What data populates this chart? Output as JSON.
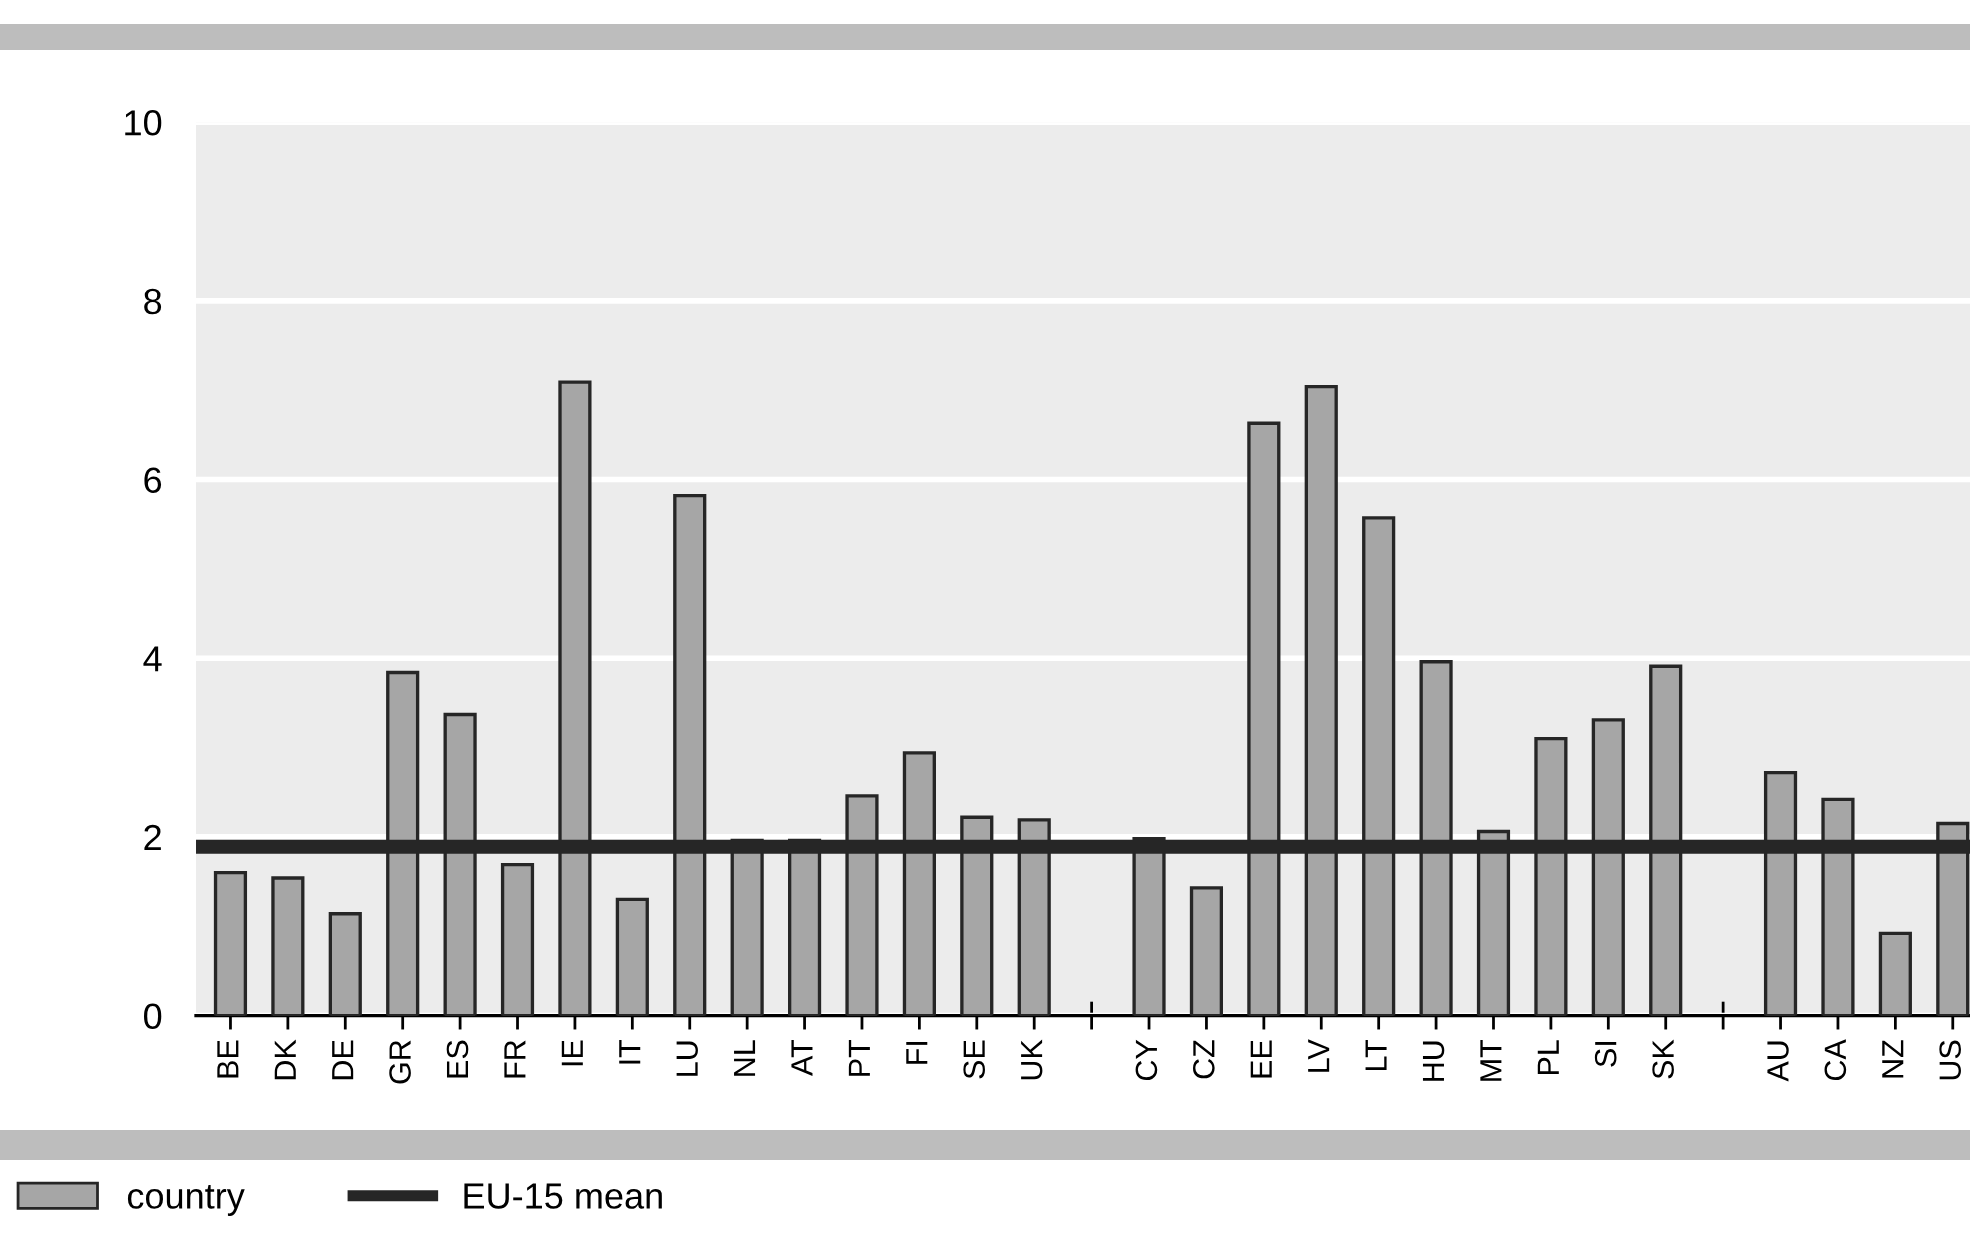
{
  "chart_data": {
    "type": "bar",
    "categories": [
      "BE",
      "DK",
      "DE",
      "GR",
      "ES",
      "FR",
      "IE",
      "IT",
      "LU",
      "NL",
      "AT",
      "PT",
      "FI",
      "SE",
      "UK",
      null,
      "CY",
      "CZ",
      "EE",
      "LV",
      "LT",
      "HU",
      "MT",
      "PL",
      "SI",
      "SK",
      null,
      "AU",
      "CA",
      "NZ",
      "US"
    ],
    "series": [
      {
        "name": "country",
        "color": "#a6a6a6",
        "values": [
          1.6,
          1.54,
          1.14,
          3.84,
          3.37,
          1.69,
          7.09,
          1.3,
          5.82,
          1.96,
          1.96,
          2.46,
          2.94,
          2.22,
          2.19,
          null,
          1.98,
          1.43,
          6.63,
          7.04,
          5.57,
          3.96,
          2.06,
          3.1,
          3.31,
          3.91,
          null,
          2.72,
          2.42,
          0.92,
          2.15
        ]
      }
    ],
    "ylim": [
      0,
      10
    ],
    "yticks": [
      0,
      2,
      4,
      6,
      8,
      10
    ],
    "ref_lines": [
      {
        "axis": "y",
        "value": 1.89,
        "label": "EU-15 mean",
        "color": "#262626",
        "line_style": "solid"
      }
    ],
    "grid": "y",
    "legend": "bottom left"
  }
}
